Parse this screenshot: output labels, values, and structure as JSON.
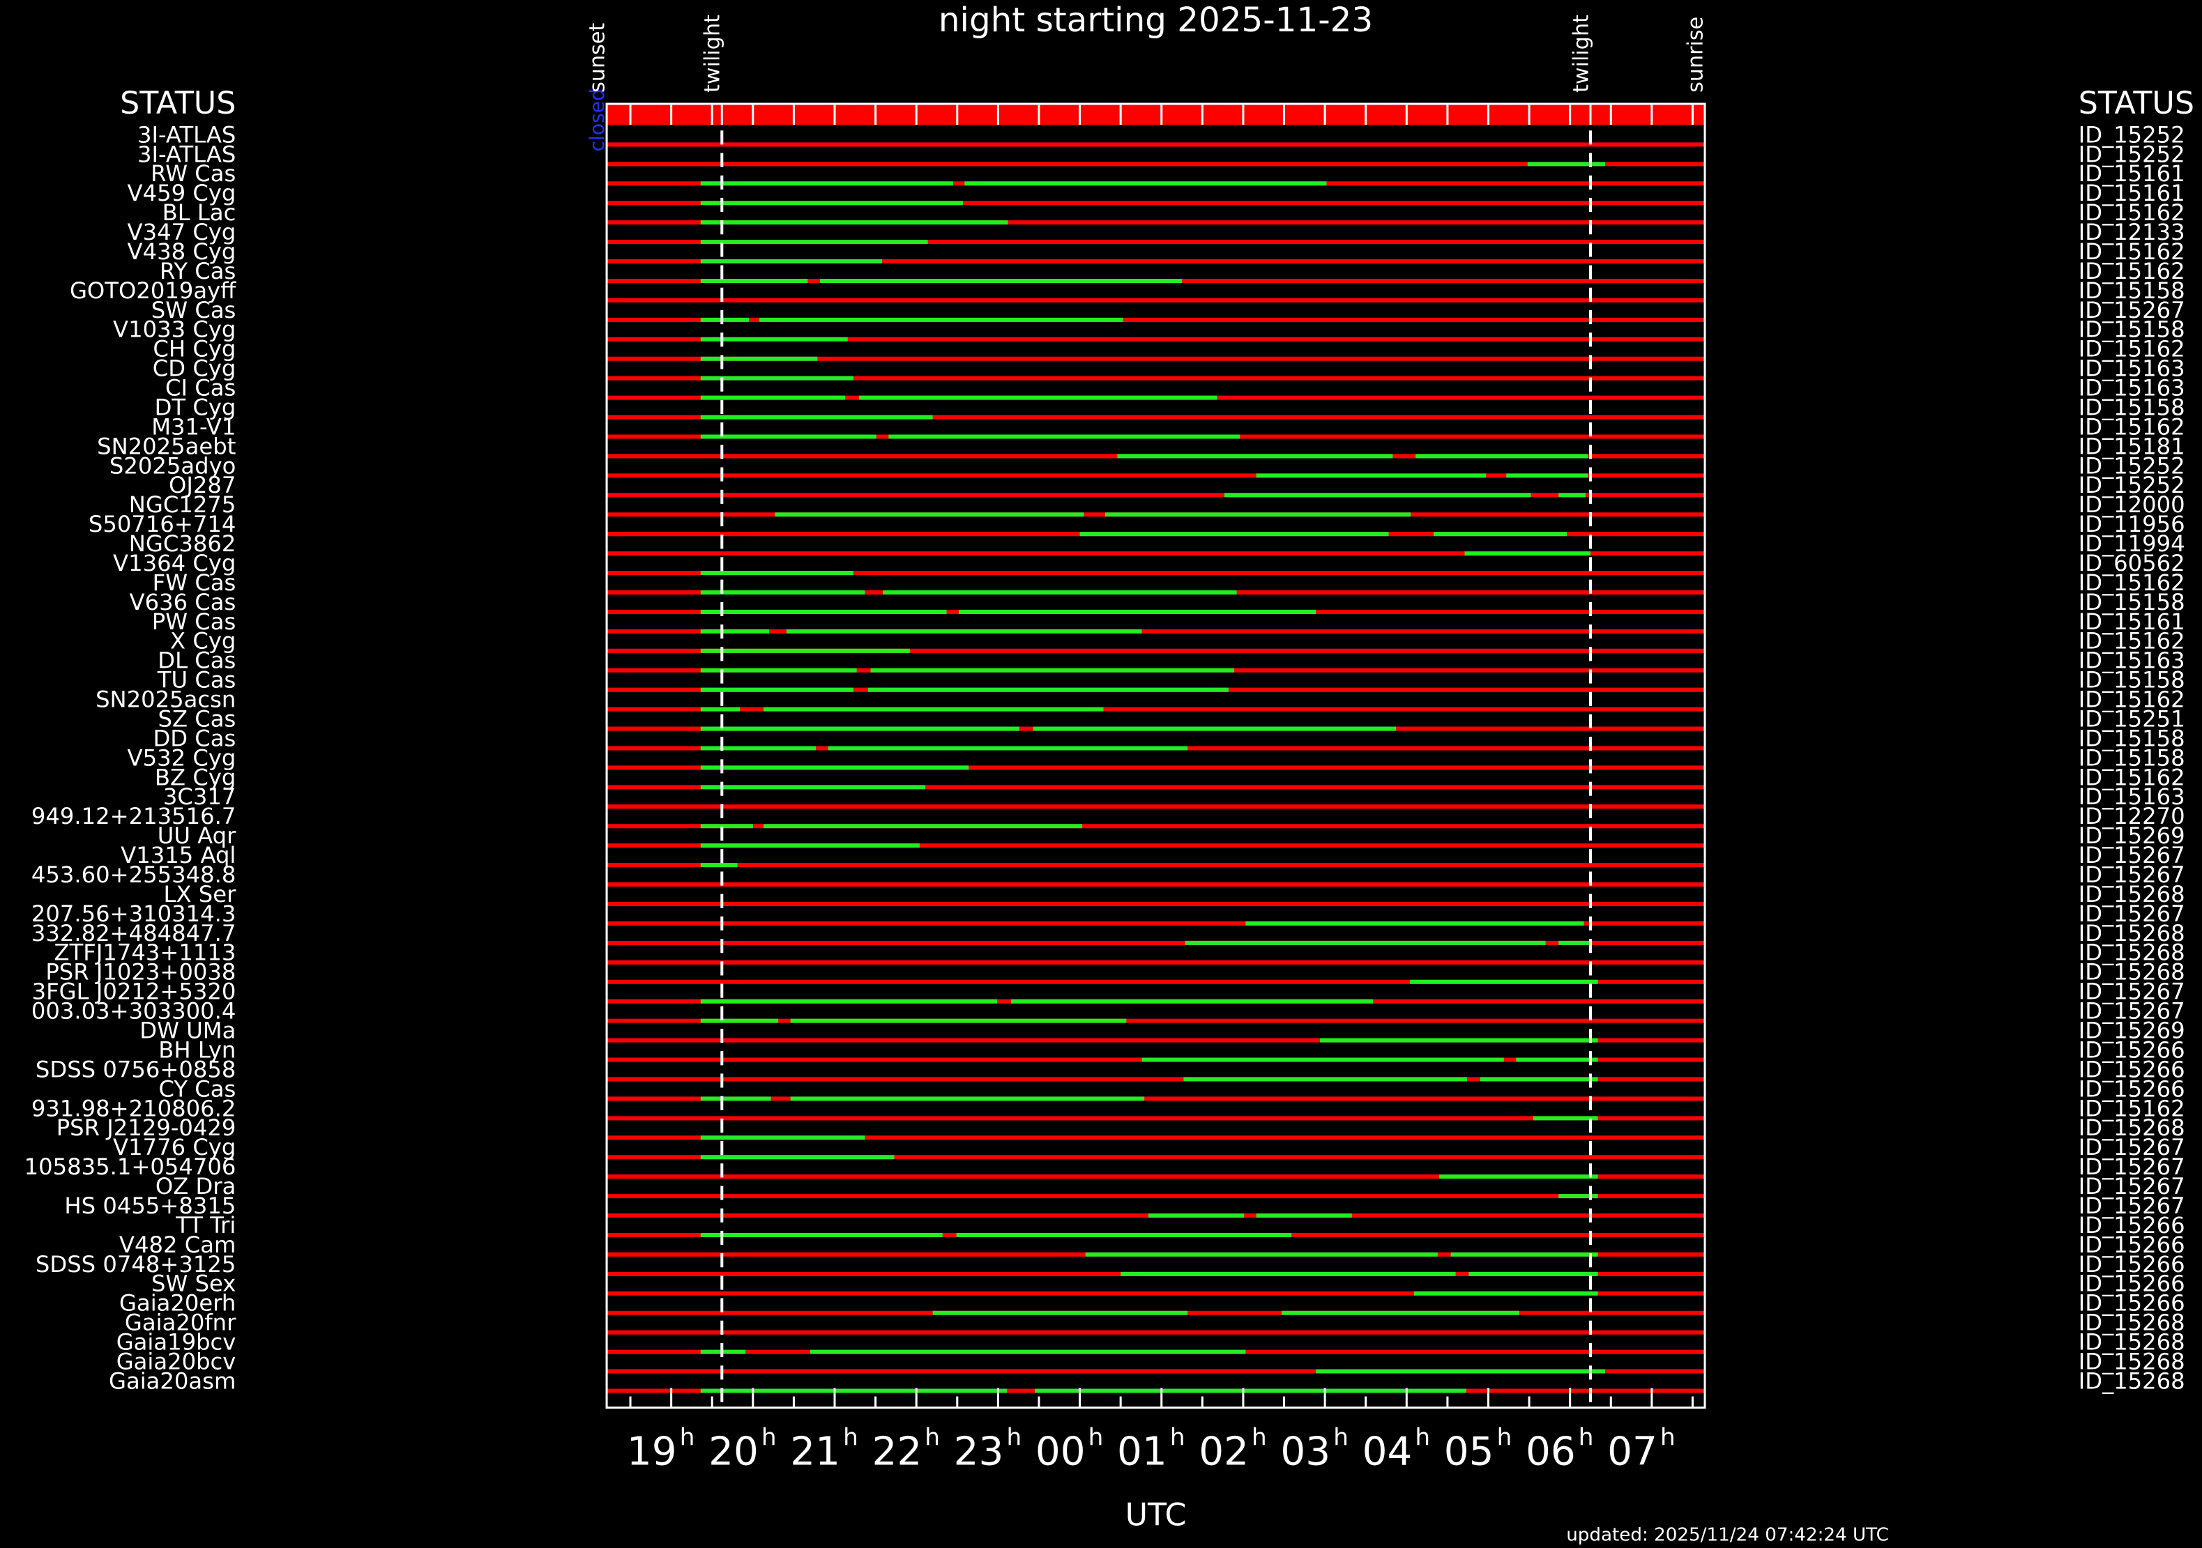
{
  "chart_data": {
    "type": "schedule",
    "title": "night starting 2025-11-23",
    "xlabel": "UTC",
    "updated": "updated: 2025/11/24 07:42:24 UTC",
    "status_header": "STATUS",
    "closed_label": "closed",
    "xtick_unit": "h",
    "xlim": [
      18.21,
      31.65
    ],
    "xticks": [
      {
        "value": 19,
        "label": "19"
      },
      {
        "value": 20,
        "label": "20"
      },
      {
        "value": 21,
        "label": "21"
      },
      {
        "value": 22,
        "label": "22"
      },
      {
        "value": 23,
        "label": "23"
      },
      {
        "value": 24,
        "label": "00"
      },
      {
        "value": 25,
        "label": "01"
      },
      {
        "value": 26,
        "label": "02"
      },
      {
        "value": 27,
        "label": "03"
      },
      {
        "value": 28,
        "label": "04"
      },
      {
        "value": 29,
        "label": "05"
      },
      {
        "value": 30,
        "label": "06"
      },
      {
        "value": 31,
        "label": "07"
      }
    ],
    "minor_xticks": [
      18.5,
      19.5,
      20.5,
      21.5,
      22.5,
      23.5,
      24.5,
      25.5,
      26.5,
      27.5,
      28.5,
      29.5,
      30.5,
      31.5
    ],
    "events": [
      {
        "label": "sunset",
        "time": 18.21
      },
      {
        "label": "twilight",
        "time": 19.62
      },
      {
        "label": "twilight",
        "time": 30.25
      },
      {
        "label": "sunrise",
        "time": 31.65
      }
    ],
    "row_color": "#ff0000",
    "segment_color": "#22ee22",
    "header_color": "#ff0000",
    "rows": [
      {
        "name": "3I-ATLAS",
        "id": "ID_15252",
        "segments": []
      },
      {
        "name": "3I-ATLAS",
        "id": "ID_15252",
        "segments": [
          [
            29.48,
            30.43
          ]
        ]
      },
      {
        "name": "RW Cas",
        "id": "ID_15161",
        "segments": [
          [
            19.36,
            22.45
          ],
          [
            22.59,
            27.02
          ]
        ]
      },
      {
        "name": "V459 Cyg",
        "id": "ID_15161",
        "segments": [
          [
            19.36,
            22.57
          ]
        ]
      },
      {
        "name": "BL Lac",
        "id": "ID_15162",
        "segments": [
          [
            19.36,
            23.12
          ]
        ]
      },
      {
        "name": "V347 Cyg",
        "id": "ID_12133",
        "segments": [
          [
            19.36,
            22.14
          ]
        ]
      },
      {
        "name": "V438 Cyg",
        "id": "ID_15162",
        "segments": [
          [
            19.36,
            21.58
          ]
        ]
      },
      {
        "name": "RY Cas",
        "id": "ID_15162",
        "segments": [
          [
            19.36,
            20.67
          ],
          [
            20.82,
            25.25
          ]
        ]
      },
      {
        "name": "GOTO2019ayff",
        "id": "ID_15158",
        "segments": []
      },
      {
        "name": "SW Cas",
        "id": "ID_15267",
        "segments": [
          [
            19.36,
            19.95
          ],
          [
            20.08,
            24.53
          ]
        ]
      },
      {
        "name": "V1033 Cyg",
        "id": "ID_15158",
        "segments": [
          [
            19.36,
            21.16
          ]
        ]
      },
      {
        "name": "CH Cyg",
        "id": "ID_15162",
        "segments": [
          [
            19.36,
            20.79
          ]
        ]
      },
      {
        "name": "CD Cyg",
        "id": "ID_15163",
        "segments": [
          [
            19.36,
            21.23
          ]
        ]
      },
      {
        "name": "CI Cas",
        "id": "ID_15163",
        "segments": [
          [
            19.36,
            21.13
          ],
          [
            21.3,
            25.68
          ]
        ]
      },
      {
        "name": "DT Cyg",
        "id": "ID_15158",
        "segments": [
          [
            19.36,
            22.2
          ]
        ]
      },
      {
        "name": "M31-V1",
        "id": "ID_15162",
        "segments": [
          [
            19.36,
            21.51
          ],
          [
            21.66,
            25.96
          ]
        ]
      },
      {
        "name": "SN2025aebt",
        "id": "ID_15181",
        "segments": [
          [
            24.46,
            27.83
          ],
          [
            28.11,
            30.22
          ]
        ]
      },
      {
        "name": "S2025adyo",
        "id": "ID_15252",
        "segments": [
          [
            26.16,
            28.97
          ],
          [
            29.22,
            30.22
          ]
        ]
      },
      {
        "name": "OJ287",
        "id": "ID_15252",
        "segments": [
          [
            25.77,
            29.52
          ],
          [
            29.86,
            30.19
          ]
        ]
      },
      {
        "name": "NGC1275",
        "id": "ID_12000",
        "segments": [
          [
            20.27,
            24.05
          ],
          [
            24.31,
            28.05
          ]
        ]
      },
      {
        "name": "S50716+714",
        "id": "ID_11956",
        "segments": [
          [
            24.0,
            27.78
          ],
          [
            28.33,
            29.96
          ]
        ]
      },
      {
        "name": "NGC3862",
        "id": "ID_11994",
        "segments": [
          [
            28.71,
            30.25
          ]
        ]
      },
      {
        "name": "V1364 Cyg",
        "id": "ID_60562",
        "segments": [
          [
            19.36,
            21.23
          ]
        ]
      },
      {
        "name": "FW Cas",
        "id": "ID_15162",
        "segments": [
          [
            19.36,
            21.37
          ],
          [
            21.59,
            25.92
          ]
        ]
      },
      {
        "name": "V636 Cas",
        "id": "ID_15158",
        "segments": [
          [
            19.36,
            22.37
          ],
          [
            22.52,
            26.89
          ]
        ]
      },
      {
        "name": "PW Cas",
        "id": "ID_15161",
        "segments": [
          [
            19.36,
            20.2
          ],
          [
            20.41,
            24.76
          ]
        ]
      },
      {
        "name": "X Cyg",
        "id": "ID_15162",
        "segments": [
          [
            19.36,
            21.92
          ]
        ]
      },
      {
        "name": "DL Cas",
        "id": "ID_15163",
        "segments": [
          [
            19.36,
            21.27
          ],
          [
            21.44,
            25.89
          ]
        ]
      },
      {
        "name": "TU Cas",
        "id": "ID_15158",
        "segments": [
          [
            19.36,
            21.23
          ],
          [
            21.41,
            25.82
          ]
        ]
      },
      {
        "name": "SN2025acsn",
        "id": "ID_15162",
        "segments": [
          [
            19.36,
            19.84
          ],
          [
            20.13,
            24.29
          ]
        ]
      },
      {
        "name": "SZ Cas",
        "id": "ID_15251",
        "segments": [
          [
            19.36,
            23.26
          ],
          [
            23.43,
            27.87
          ]
        ]
      },
      {
        "name": "DD Cas",
        "id": "ID_15158",
        "segments": [
          [
            19.36,
            20.77
          ],
          [
            20.92,
            25.32
          ]
        ]
      },
      {
        "name": "V532 Cyg",
        "id": "ID_15158",
        "segments": [
          [
            19.36,
            22.64
          ]
        ]
      },
      {
        "name": "BZ Cyg",
        "id": "ID_15162",
        "segments": [
          [
            19.36,
            22.11
          ]
        ]
      },
      {
        "name": "3C317",
        "id": "ID_15163",
        "segments": []
      },
      {
        "name": "949.12+213516.7",
        "id": "ID_12270",
        "segments": [
          [
            19.36,
            20.0
          ],
          [
            20.13,
            24.03
          ]
        ]
      },
      {
        "name": "UU Aqr",
        "id": "ID_15269",
        "segments": [
          [
            19.36,
            22.04
          ]
        ]
      },
      {
        "name": "V1315 Aql",
        "id": "ID_15267",
        "segments": [
          [
            19.36,
            19.81
          ]
        ]
      },
      {
        "name": "453.60+255348.8",
        "id": "ID_15267",
        "segments": []
      },
      {
        "name": "LX Ser",
        "id": "ID_15268",
        "segments": []
      },
      {
        "name": "207.56+310314.3",
        "id": "ID_15267",
        "segments": [
          [
            26.03,
            30.17
          ]
        ]
      },
      {
        "name": "332.82+484847.7",
        "id": "ID_15268",
        "segments": [
          [
            25.29,
            29.7
          ],
          [
            29.86,
            30.25
          ]
        ]
      },
      {
        "name": "ZTFJ1743+1113",
        "id": "ID_15268",
        "segments": []
      },
      {
        "name": "PSR J1023+0038",
        "id": "ID_15268",
        "segments": [
          [
            28.04,
            30.34
          ]
        ]
      },
      {
        "name": "3FGL J0212+5320",
        "id": "ID_15267",
        "segments": [
          [
            19.36,
            22.99
          ],
          [
            23.16,
            27.59
          ]
        ]
      },
      {
        "name": "003.03+303300.4",
        "id": "ID_15267",
        "segments": [
          [
            19.36,
            20.31
          ],
          [
            20.46,
            24.57
          ]
        ]
      },
      {
        "name": "DW UMa",
        "id": "ID_15269",
        "segments": [
          [
            26.94,
            30.34
          ]
        ]
      },
      {
        "name": "BH Lyn",
        "id": "ID_15266",
        "segments": [
          [
            24.76,
            29.19
          ],
          [
            29.34,
            30.34
          ]
        ]
      },
      {
        "name": "SDSS 0756+0858",
        "id": "ID_15266",
        "segments": [
          [
            25.27,
            28.74
          ],
          [
            28.9,
            30.34
          ]
        ]
      },
      {
        "name": "CY Cas",
        "id": "ID_15266",
        "segments": [
          [
            19.36,
            20.22
          ],
          [
            20.46,
            24.79
          ]
        ]
      },
      {
        "name": "931.98+210806.2",
        "id": "ID_15162",
        "segments": [
          [
            29.55,
            30.34
          ]
        ]
      },
      {
        "name": "PSR J2129-0429",
        "id": "ID_15268",
        "segments": [
          [
            19.36,
            21.37
          ]
        ]
      },
      {
        "name": "V1776 Cyg",
        "id": "ID_15267",
        "segments": [
          [
            19.36,
            21.73
          ]
        ]
      },
      {
        "name": "105835.1+054706",
        "id": "ID_15267",
        "segments": [
          [
            28.4,
            30.34
          ]
        ]
      },
      {
        "name": "OZ Dra",
        "id": "ID_15267",
        "segments": [
          [
            29.86,
            30.34
          ]
        ]
      },
      {
        "name": "HS 0455+8315",
        "id": "ID_15267",
        "segments": [
          [
            24.84,
            26.01
          ],
          [
            26.16,
            27.33
          ]
        ]
      },
      {
        "name": "TT Tri",
        "id": "ID_15266",
        "segments": [
          [
            19.36,
            22.32
          ],
          [
            22.49,
            26.59
          ]
        ]
      },
      {
        "name": "V482 Cam",
        "id": "ID_15266",
        "segments": [
          [
            24.07,
            28.38
          ],
          [
            28.54,
            30.34
          ]
        ]
      },
      {
        "name": "SDSS 0748+3125",
        "id": "ID_15266",
        "segments": [
          [
            24.5,
            28.6
          ],
          [
            28.76,
            30.34
          ]
        ]
      },
      {
        "name": "SW Sex",
        "id": "ID_15266",
        "segments": [
          [
            28.09,
            30.34
          ]
        ]
      },
      {
        "name": "Gaia20erh",
        "id": "ID_15266",
        "segments": [
          [
            22.2,
            25.32
          ],
          [
            26.47,
            29.38
          ]
        ]
      },
      {
        "name": "Gaia20fnr",
        "id": "ID_15268",
        "segments": []
      },
      {
        "name": "Gaia19bcv",
        "id": "ID_15268",
        "segments": [
          [
            19.36,
            19.91
          ],
          [
            20.7,
            26.03
          ]
        ]
      },
      {
        "name": "Gaia20bcv",
        "id": "ID_15268",
        "segments": [
          [
            26.89,
            30.43
          ]
        ]
      },
      {
        "name": "Gaia20asm",
        "id": "ID_15268",
        "segments": [
          [
            19.36,
            23.11
          ],
          [
            23.45,
            28.73
          ]
        ]
      }
    ]
  }
}
